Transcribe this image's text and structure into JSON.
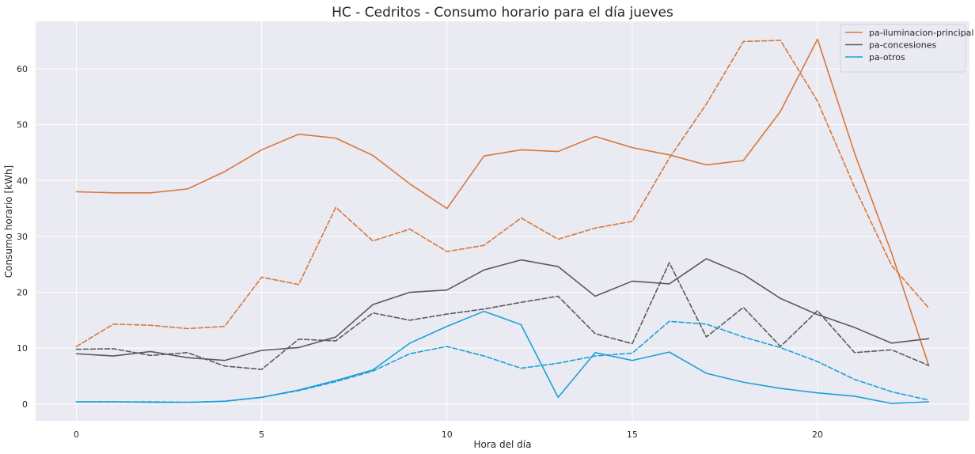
{
  "chart_data": {
    "type": "line",
    "title": "HC - Cedritos - Consumo horario para el día jueves",
    "xlabel": "Hora del día",
    "ylabel": "Consumo horario [kWh]",
    "xlim": [
      -1.1,
      24.1
    ],
    "ylim": [
      -3,
      68.5
    ],
    "x_ticks": [
      0,
      5,
      10,
      15,
      20
    ],
    "y_ticks": [
      0,
      10,
      20,
      30,
      40,
      50,
      60
    ],
    "grid": true,
    "legend_position": "top-right",
    "x": [
      0,
      1,
      2,
      3,
      4,
      5,
      6,
      7,
      8,
      9,
      10,
      11,
      12,
      13,
      14,
      15,
      16,
      17,
      18,
      19,
      20,
      21,
      22,
      23
    ],
    "series": [
      {
        "name": "pa-iluminacion-principal",
        "color": "#d9773a",
        "style": "solid",
        "values": [
          38.0,
          37.8,
          37.8,
          38.5,
          41.6,
          45.5,
          48.3,
          47.6,
          44.5,
          39.4,
          35.0,
          44.4,
          45.5,
          45.2,
          47.9,
          45.9,
          44.6,
          42.8,
          43.6,
          52.4,
          65.3,
          44.9,
          27.0,
          6.9
        ]
      },
      {
        "name": "",
        "color": "#d9773a",
        "style": "dashed",
        "values": [
          10.3,
          14.3,
          14.1,
          13.5,
          13.9,
          22.7,
          21.4,
          35.2,
          29.2,
          31.3,
          27.3,
          28.4,
          33.3,
          29.5,
          31.5,
          32.7,
          44.0,
          53.7,
          64.9,
          65.1,
          54.2,
          38.8,
          24.8,
          17.2
        ]
      },
      {
        "name": "pa-concesiones",
        "color": "#5a5a5a",
        "style": "solid",
        "values": [
          9.0,
          8.6,
          9.4,
          8.3,
          7.8,
          9.6,
          10.1,
          12.0,
          17.8,
          20.0,
          20.4,
          24.0,
          25.8,
          24.6,
          19.3,
          22.0,
          21.5,
          26.0,
          23.2,
          18.9,
          16.0,
          13.7,
          10.9,
          11.7
        ]
      },
      {
        "name": "",
        "color": "#5a5a5a",
        "style": "dashed",
        "values": [
          9.8,
          9.9,
          8.7,
          9.2,
          6.8,
          6.2,
          11.6,
          11.3,
          16.3,
          15.0,
          16.1,
          17.0,
          18.2,
          19.3,
          12.6,
          10.8,
          25.3,
          12.0,
          17.3,
          10.3,
          16.7,
          9.2,
          9.7,
          6.9
        ]
      },
      {
        "name": "pa-otros",
        "color": "#1aa1d8",
        "style": "solid",
        "values": [
          0.4,
          0.4,
          0.3,
          0.3,
          0.5,
          1.2,
          2.5,
          4.2,
          6.1,
          10.9,
          13.9,
          16.6,
          14.2,
          1.2,
          9.2,
          7.8,
          9.3,
          5.5,
          3.9,
          2.8,
          2.0,
          1.4,
          0.1,
          0.4
        ]
      },
      {
        "name": "",
        "color": "#1aa1d8",
        "style": "dashed",
        "values": [
          0.4,
          0.4,
          0.4,
          0.3,
          0.5,
          1.2,
          2.4,
          4.0,
          5.9,
          9.0,
          10.3,
          8.6,
          6.4,
          7.3,
          8.6,
          9.1,
          14.8,
          14.3,
          12.0,
          10.1,
          7.6,
          4.4,
          2.2,
          0.7
        ]
      }
    ]
  }
}
